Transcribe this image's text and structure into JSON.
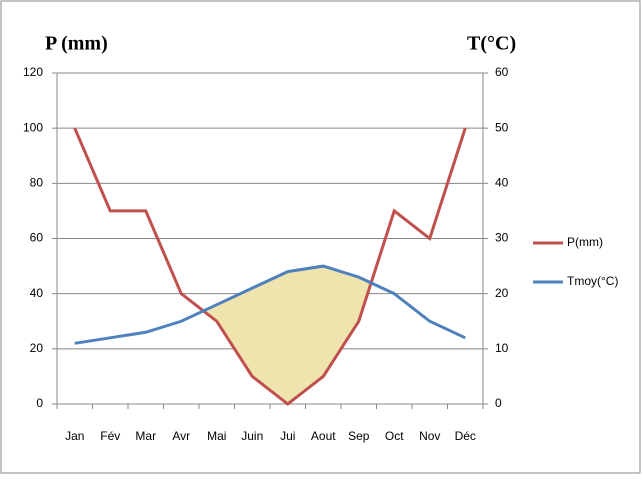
{
  "chart_data": {
    "type": "line",
    "y_label": "P (mm)",
    "y2_label": "T(°C)",
    "categories": [
      "Jan",
      "Fév",
      "Mar",
      "Avr",
      "Mai",
      "Juin",
      "Jui",
      "Aout",
      "Sep",
      "Oct",
      "Nov",
      "Déc"
    ],
    "series": [
      {
        "name": "P(mm)",
        "color": "#c0504d",
        "values": [
          100,
          70,
          70,
          40,
          30,
          10,
          0,
          10,
          30,
          70,
          60,
          100
        ]
      },
      {
        "name": "Tmoy(°C)",
        "color": "#4f81bd",
        "axis": "y2",
        "values": [
          11,
          12,
          13,
          15,
          18,
          21,
          24,
          25,
          23,
          20,
          15,
          12
        ]
      }
    ],
    "ylim": [
      0,
      120
    ],
    "yticks": [
      0,
      20,
      40,
      60,
      80,
      100,
      120
    ],
    "y2lim": [
      0,
      60
    ],
    "y2ticks": [
      0,
      10,
      20,
      30,
      40,
      50,
      60
    ],
    "grid": true,
    "legend": "right",
    "dry_fill": "#efe4ae"
  }
}
